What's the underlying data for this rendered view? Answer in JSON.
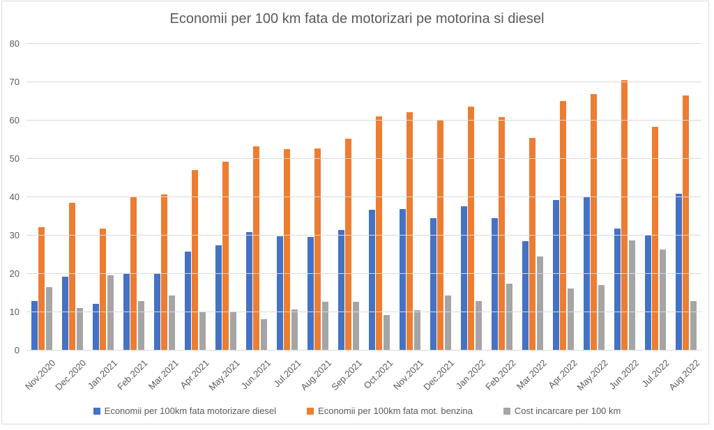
{
  "chart_data": {
    "type": "bar",
    "title": "Economii per 100 km fata de motorizari pe motorina si diesel",
    "categories": [
      "Nov.2020",
      "Dec.2020",
      "Jan.2021",
      "Feb.2021",
      "Mar.2021",
      "Apr.2021",
      "May.2021",
      "Jun.2021",
      "Jul.2021",
      "Aug.2021",
      "Sep.2021",
      "Oct.2021",
      "Nov.2021",
      "Dec.2021",
      "Jan.2022",
      "Feb.2022",
      "Mar.2022",
      "Apr.2022",
      "May.2022",
      "Jun.2022",
      "Jul.2022",
      "Aug.2022"
    ],
    "series": [
      {
        "name": "Economii per 100km fata motorizare diesel",
        "color": "#4472C4",
        "values": [
          13.0,
          19.2,
          12.1,
          20.0,
          20.1,
          25.9,
          27.4,
          31.0,
          29.9,
          29.6,
          31.4,
          36.7,
          37.0,
          34.6,
          37.7,
          34.5,
          28.5,
          39.3,
          40.0,
          31.9,
          30.1,
          40.9
        ]
      },
      {
        "name": "Economii per 100km fata mot. benzina",
        "color": "#ED7D31",
        "values": [
          32.2,
          38.6,
          31.9,
          40.2,
          40.8,
          47.1,
          49.2,
          53.3,
          52.6,
          52.8,
          55.3,
          61.1,
          62.1,
          60.0,
          63.6,
          60.9,
          55.5,
          65.1,
          66.9,
          70.6,
          58.4,
          66.6
        ]
      },
      {
        "name": "Cost incarcare per 100 km",
        "color": "#A5A5A5",
        "values": [
          16.6,
          11.1,
          19.6,
          12.9,
          14.4,
          10.2,
          10.1,
          8.2,
          10.8,
          12.8,
          12.8,
          9.3,
          10.6,
          14.3,
          12.9,
          17.4,
          24.6,
          16.1,
          17.1,
          28.7,
          26.3,
          13.0
        ]
      }
    ],
    "ylim": [
      0,
      80
    ],
    "yticks": [
      0,
      10,
      20,
      30,
      40,
      50,
      60,
      70,
      80
    ],
    "grid": true,
    "legend_position": "bottom",
    "xlabel": "",
    "ylabel": ""
  },
  "colors": {
    "text": "#595959",
    "gridline": "#D9D9D9",
    "background": "#FFFFFF"
  }
}
